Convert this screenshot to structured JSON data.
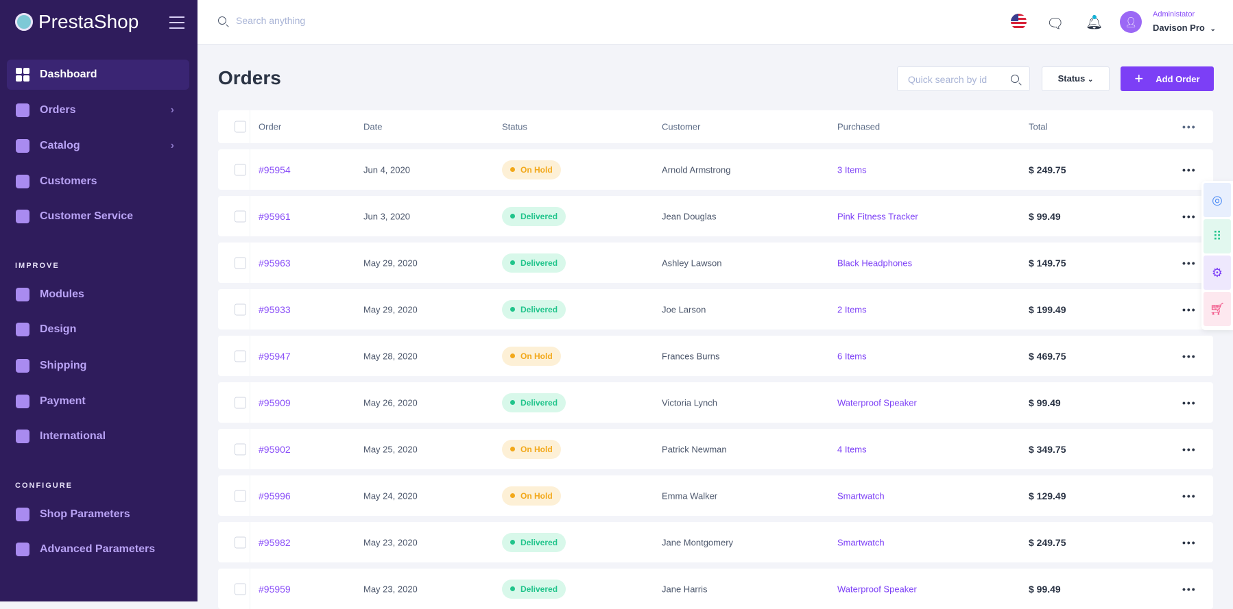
{
  "brand": "PrestaShop",
  "sidebar": {
    "main": [
      {
        "label": "Dashboard",
        "icon": "dashboard-icon",
        "active": true
      },
      {
        "label": "Orders",
        "icon": "cart-icon",
        "chevron": true
      },
      {
        "label": "Catalog",
        "icon": "box-icon",
        "chevron": true
      },
      {
        "label": "Customers",
        "icon": "users-icon"
      },
      {
        "label": "Customer Service",
        "icon": "chat-icon"
      }
    ],
    "improve_title": "IMPROVE",
    "improve": [
      {
        "label": "Modules",
        "icon": "puzzle-icon"
      },
      {
        "label": "Design",
        "icon": "layout-icon"
      },
      {
        "label": "Shipping",
        "icon": "truck-icon"
      },
      {
        "label": "Payment",
        "icon": "layers-icon"
      },
      {
        "label": "International",
        "icon": "globe-icon"
      }
    ],
    "configure_title": "CONFIGURE",
    "configure": [
      {
        "label": "Shop Parameters",
        "icon": "gear-icon"
      },
      {
        "label": "Advanced Parameters",
        "icon": "sliders-icon"
      }
    ]
  },
  "topbar": {
    "search_placeholder": "Search anything",
    "user_role": "Administator",
    "user_name": "Davison Pro"
  },
  "page": {
    "title": "Orders",
    "quick_search_placeholder": "Quick search by id",
    "status_label": "Status",
    "add_label": "Add Order"
  },
  "table": {
    "headers": [
      "Order",
      "Date",
      "Status",
      "Customer",
      "Purchased",
      "Total"
    ],
    "rows": [
      {
        "order": "#95954",
        "date": "Jun 4, 2020",
        "status": "On Hold",
        "customer": "Arnold Armstrong",
        "purchased": "3 Items",
        "total": "$ 249.75"
      },
      {
        "order": "#95961",
        "date": "Jun 3, 2020",
        "status": "Delivered",
        "customer": "Jean Douglas",
        "purchased": "Pink Fitness Tracker",
        "total": "$ 99.49"
      },
      {
        "order": "#95963",
        "date": "May 29, 2020",
        "status": "Delivered",
        "customer": "Ashley Lawson",
        "purchased": "Black Headphones",
        "total": "$ 149.75"
      },
      {
        "order": "#95933",
        "date": "May 29, 2020",
        "status": "Delivered",
        "customer": "Joe Larson",
        "purchased": "2 Items",
        "total": "$ 199.49"
      },
      {
        "order": "#95947",
        "date": "May 28, 2020",
        "status": "On Hold",
        "customer": "Frances Burns",
        "purchased": "6 Items",
        "total": "$ 469.75"
      },
      {
        "order": "#95909",
        "date": "May 26, 2020",
        "status": "Delivered",
        "customer": "Victoria Lynch",
        "purchased": "Waterproof Speaker",
        "total": "$ 99.49"
      },
      {
        "order": "#95902",
        "date": "May 25, 2020",
        "status": "On Hold",
        "customer": "Patrick Newman",
        "purchased": "4 Items",
        "total": "$ 349.75"
      },
      {
        "order": "#95996",
        "date": "May 24, 2020",
        "status": "On Hold",
        "customer": "Emma Walker",
        "purchased": "Smartwatch",
        "total": "$ 129.49"
      },
      {
        "order": "#95982",
        "date": "May 23, 2020",
        "status": "Delivered",
        "customer": "Jane Montgomery",
        "purchased": "Smartwatch",
        "total": "$ 249.75"
      },
      {
        "order": "#95959",
        "date": "May 23, 2020",
        "status": "Delivered",
        "customer": "Jane Harris",
        "purchased": "Waterproof Speaker",
        "total": "$ 99.49"
      }
    ]
  },
  "colors": {
    "sidebar": "#2f1c5c",
    "accent": "#7c3ff6",
    "on_hold": "#f2a81a",
    "delivered": "#21c48b"
  }
}
